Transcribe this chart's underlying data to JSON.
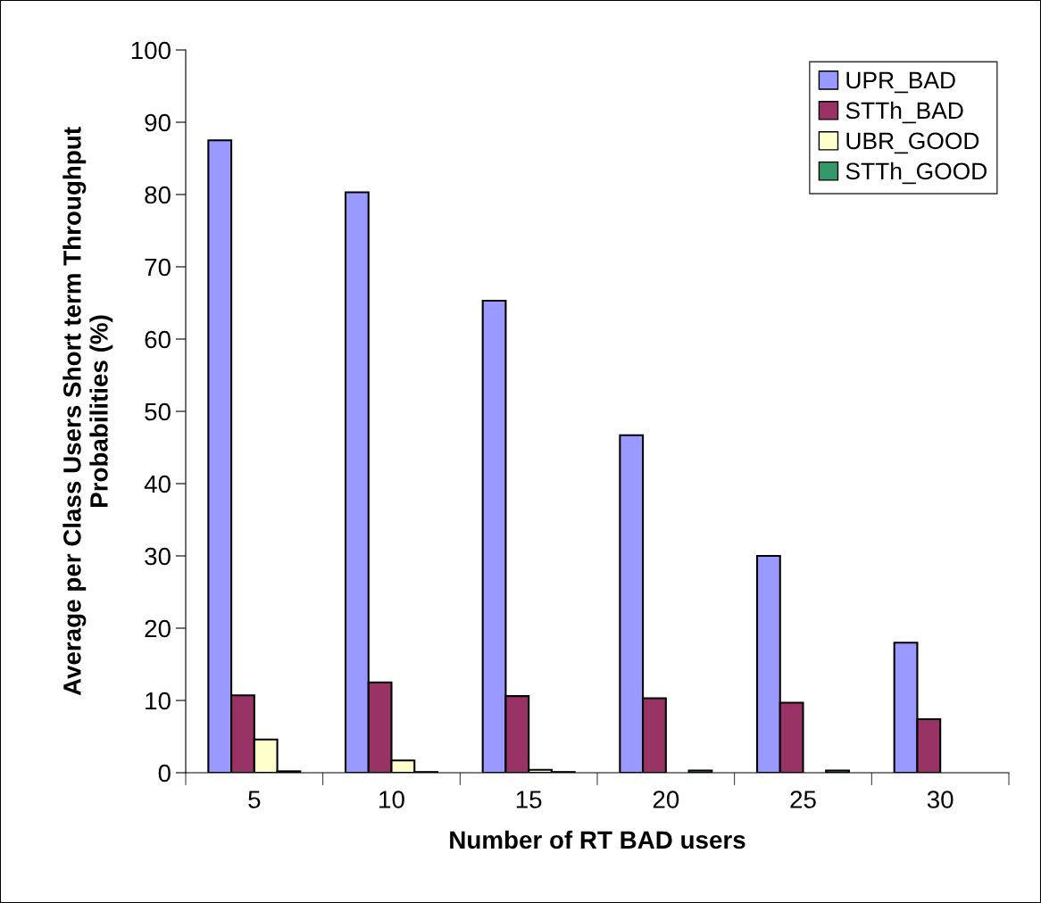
{
  "chart_data": {
    "type": "bar",
    "xlabel": "Number of RT BAD users",
    "ylabel": "Average per Class Users Short term Throughput\nProbabilities (%)",
    "categories": [
      "5",
      "10",
      "15",
      "20",
      "25",
      "30"
    ],
    "series": [
      {
        "name": "UPR_BAD",
        "color": "#9999ff",
        "values": [
          87.5,
          80.3,
          65.3,
          46.7,
          30.0,
          18.0
        ]
      },
      {
        "name": "STTh_BAD",
        "color": "#993366",
        "values": [
          10.7,
          12.5,
          10.6,
          10.3,
          9.7,
          7.4
        ]
      },
      {
        "name": "UBR_GOOD",
        "color": "#ffffcc",
        "values": [
          4.6,
          1.7,
          0.4,
          null,
          null,
          null
        ]
      },
      {
        "name": "STTh_GOOD",
        "color": "#339966",
        "values": [
          0.2,
          0.1,
          0.1,
          0.3,
          0.3,
          null
        ]
      }
    ],
    "ylim": [
      0,
      100
    ],
    "yticks": [
      0,
      10,
      20,
      30,
      40,
      50,
      60,
      70,
      80,
      90,
      100
    ],
    "grid": false,
    "legend": "top right"
  }
}
